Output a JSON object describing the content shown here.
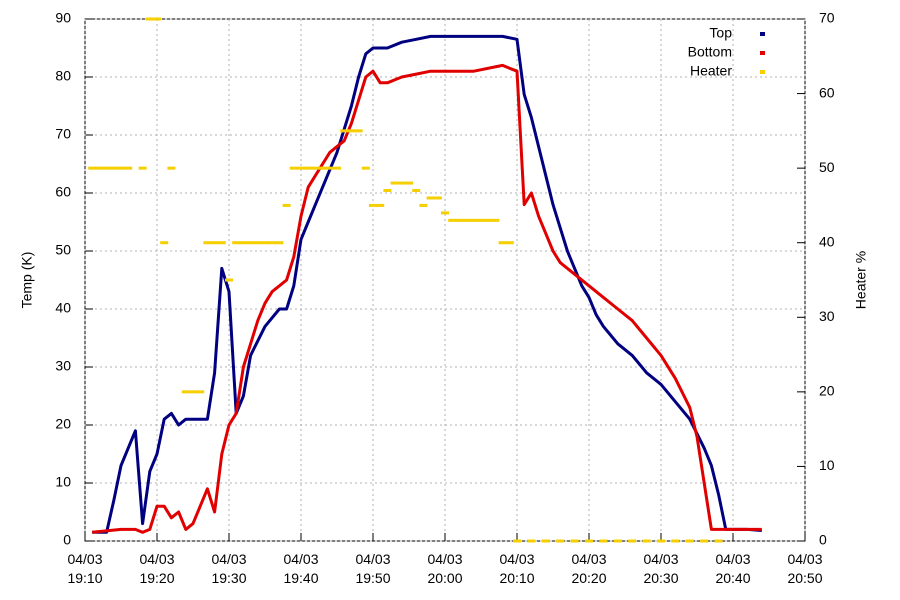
{
  "chart_data": {
    "type": "line",
    "y_label": "Temp (K)",
    "y2_label": "Heater %",
    "xlim": [
      "19:10",
      "20:50"
    ],
    "xticks": [
      {
        "value": "19:10",
        "label": "04/03\n19:10"
      },
      {
        "value": "19:20",
        "label": "04/03\n19:20"
      },
      {
        "value": "19:30",
        "label": "04/03\n19:30"
      },
      {
        "value": "19:40",
        "label": "04/03\n19:40"
      },
      {
        "value": "19:50",
        "label": "04/03\n19:50"
      },
      {
        "value": "20:00",
        "label": "04/03\n20:00"
      },
      {
        "value": "20:10",
        "label": "04/03\n20:10"
      },
      {
        "value": "20:20",
        "label": "04/03\n20:20"
      },
      {
        "value": "20:30",
        "label": "04/03\n20:30"
      },
      {
        "value": "20:40",
        "label": "04/03\n20:40"
      },
      {
        "value": "20:50",
        "label": "04/03\n20:50"
      }
    ],
    "ylim": [
      0,
      90
    ],
    "yticks": [
      0,
      10,
      20,
      30,
      40,
      50,
      60,
      70,
      80,
      90
    ],
    "y2lim": [
      0,
      70
    ],
    "y2ticks": [
      0,
      10,
      20,
      30,
      40,
      50,
      60,
      70
    ],
    "grid": true,
    "legend": "top-right",
    "series": [
      {
        "name": "Top",
        "color": "#000080",
        "style": "line",
        "x": [
          "19:11",
          "19:13",
          "19:14",
          "19:15",
          "19:16",
          "19:17",
          "19:18",
          "19:19",
          "19:20",
          "19:21",
          "19:22",
          "19:23",
          "19:24",
          "19:26",
          "19:27",
          "19:28",
          "19:29",
          "19:30",
          "19:31",
          "19:32",
          "19:33",
          "19:35",
          "19:37",
          "19:38",
          "19:39",
          "19:40",
          "19:41",
          "19:42",
          "19:43",
          "19:44",
          "19:45",
          "19:46",
          "19:47",
          "19:48",
          "19:49",
          "19:50",
          "19:52",
          "19:54",
          "19:56",
          "19:58",
          "20:00",
          "20:05",
          "20:08",
          "20:10",
          "20:11",
          "20:12",
          "20:13",
          "20:14",
          "20:15",
          "20:16",
          "20:17",
          "20:18",
          "20:19",
          "20:20",
          "20:21",
          "20:22",
          "20:24",
          "20:26",
          "20:28",
          "20:30",
          "20:32",
          "20:34",
          "20:36",
          "20:37",
          "20:38",
          "20:39",
          "20:42",
          "20:44"
        ],
        "values": [
          1.5,
          1.5,
          7,
          13,
          16,
          19,
          3,
          12,
          15,
          21,
          22,
          20,
          21,
          21,
          21,
          29,
          47,
          43,
          22,
          25,
          32,
          37,
          40,
          40,
          44,
          52,
          55,
          58,
          61,
          64,
          67,
          71,
          75,
          80,
          84,
          85,
          85,
          86,
          86.5,
          87,
          87,
          87,
          87,
          86.5,
          77,
          73,
          68,
          63,
          58,
          54,
          50,
          47,
          44,
          42,
          39,
          37,
          34,
          32,
          29,
          27,
          24,
          21,
          16,
          13,
          8,
          2,
          2,
          1.8
        ]
      },
      {
        "name": "Bottom",
        "color": "#e00000",
        "style": "line",
        "x": [
          "19:11",
          "19:15",
          "19:17",
          "19:18",
          "19:19",
          "19:20",
          "19:21",
          "19:22",
          "19:23",
          "19:24",
          "19:25",
          "19:26",
          "19:27",
          "19:28",
          "19:29",
          "19:30",
          "19:31",
          "19:32",
          "19:33",
          "19:34",
          "19:35",
          "19:36",
          "19:37",
          "19:38",
          "19:39",
          "19:40",
          "19:41",
          "19:42",
          "19:43",
          "19:44",
          "19:45",
          "19:46",
          "19:47",
          "19:48",
          "19:49",
          "19:50",
          "19:51",
          "19:52",
          "19:54",
          "19:56",
          "19:58",
          "20:00",
          "20:04",
          "20:08",
          "20:10",
          "20:11",
          "20:12",
          "20:13",
          "20:14",
          "20:15",
          "20:16",
          "20:17",
          "20:18",
          "20:20",
          "20:22",
          "20:24",
          "20:26",
          "20:28",
          "20:30",
          "20:32",
          "20:34",
          "20:35",
          "20:36",
          "20:37",
          "20:44"
        ],
        "values": [
          1.5,
          2,
          2,
          1.5,
          2,
          6,
          6,
          4,
          5,
          2,
          3,
          6,
          9,
          5,
          15,
          20,
          22,
          30,
          34,
          38,
          41,
          43,
          44,
          45,
          49,
          56,
          61,
          63,
          65,
          67,
          68,
          69,
          72,
          76,
          80,
          81,
          79,
          79,
          80,
          80.5,
          81,
          81,
          81,
          82,
          81,
          58,
          60,
          56,
          53,
          50,
          48,
          47,
          46,
          44,
          42,
          40,
          38,
          35,
          32,
          28,
          23,
          18,
          10,
          2,
          2
        ]
      },
      {
        "name": "Heater",
        "color": "#f5cf00",
        "style": "points",
        "axis": "y2",
        "x": [
          "19:11",
          "19:12",
          "19:13",
          "19:14",
          "19:15",
          "19:16",
          "19:18",
          "19:19",
          "19:20",
          "19:21",
          "19:22",
          "19:24",
          "19:25",
          "19:26",
          "19:27",
          "19:28",
          "19:29",
          "19:30",
          "19:31",
          "19:32",
          "19:33",
          "19:34",
          "19:35",
          "19:36",
          "19:37",
          "19:38",
          "19:39",
          "19:40",
          "19:41",
          "19:42",
          "19:43",
          "19:44",
          "19:45",
          "19:46",
          "19:47",
          "19:48",
          "19:49",
          "19:50",
          "19:51",
          "19:52",
          "19:53",
          "19:54",
          "19:55",
          "19:56",
          "19:57",
          "19:58",
          "19:59",
          "20:00",
          "20:01",
          "20:02",
          "20:03",
          "20:04",
          "20:05",
          "20:06",
          "20:07",
          "20:08",
          "20:09",
          "20:10",
          "20:12",
          "20:14",
          "20:16",
          "20:18",
          "20:20",
          "20:22",
          "20:24",
          "20:26",
          "20:28",
          "20:30",
          "20:32",
          "20:34",
          "20:36",
          "20:38"
        ],
        "values": [
          50,
          50,
          50,
          50,
          50,
          50,
          50,
          70,
          70,
          40,
          50,
          20,
          20,
          20,
          40,
          40,
          40,
          35,
          40,
          40,
          40,
          40,
          40,
          40,
          40,
          45,
          50,
          50,
          50,
          50,
          50,
          50,
          50,
          55,
          55,
          55,
          50,
          45,
          45,
          47,
          48,
          48,
          48,
          47,
          45,
          46,
          46,
          44,
          43,
          43,
          43,
          43,
          43,
          43,
          43,
          40,
          40,
          0,
          0,
          0,
          0,
          0,
          0,
          0,
          0,
          0,
          0,
          0,
          0,
          0,
          0,
          0
        ]
      }
    ]
  }
}
